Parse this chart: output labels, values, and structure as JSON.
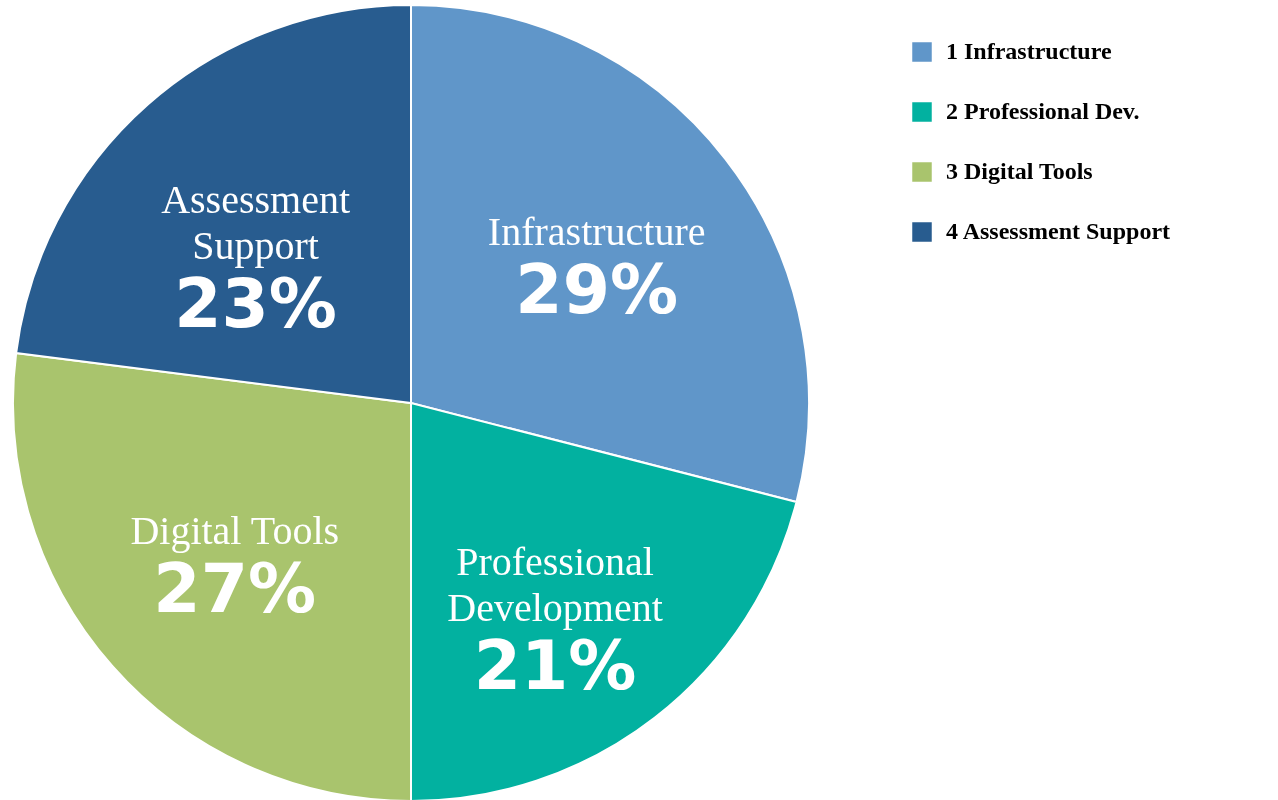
{
  "chart_data": {
    "type": "pie",
    "categories": [
      "1 Infrastructure",
      "2 Professional Dev.",
      "3 Digital Tools",
      "4 Assessment Support"
    ],
    "values": [
      29,
      21,
      27,
      23
    ],
    "value_labels": [
      "29%",
      "21%",
      "27%",
      "23%"
    ],
    "colors": [
      "#6096c9",
      "#02b1a0",
      "#a9c46d",
      "#285c8f"
    ],
    "annotations": [
      "Infrastructure",
      "Professional Development",
      "Digital Tools",
      "Assessment Support"
    ],
    "legend": "right"
  }
}
